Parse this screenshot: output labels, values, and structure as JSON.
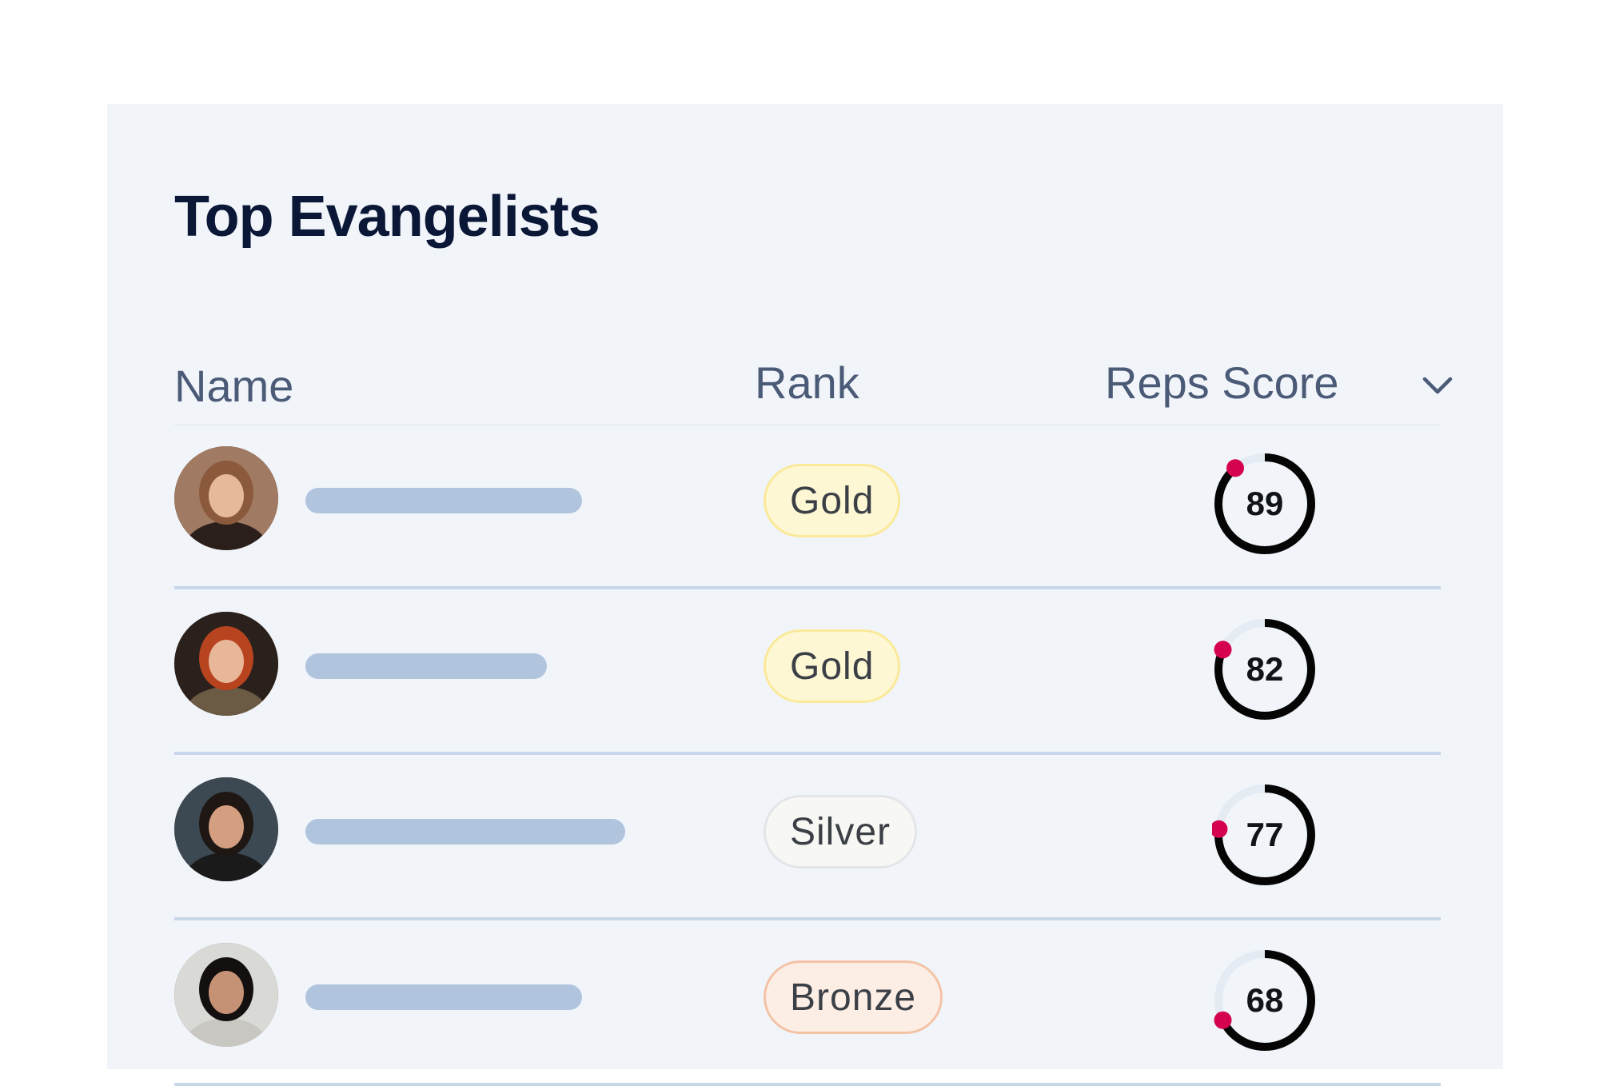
{
  "card": {
    "title": "Top Evangelists",
    "columns": {
      "name": "Name",
      "rank": "Rank",
      "score": "Reps Score"
    },
    "sort_icon": "chevron-down-icon"
  },
  "colors": {
    "gold_bg": "#fdf7d3",
    "gold_border": "#fbe99a",
    "silver_bg": "#f7f7f4",
    "silver_border": "#e3e5e8",
    "bronze_bg": "#fdeee5",
    "bronze_border": "#f4c3a6",
    "ring": "#050505",
    "ring_track": "#e4ebf3",
    "ring_dot": "#d4024f",
    "name_bar": "#b1c4de"
  },
  "rows": [
    {
      "avatar": "avatar-woman-hijab",
      "name_bar_fraction": 0.64,
      "rank": "Gold",
      "rank_tier": "gold",
      "score": "89",
      "score_value": 89
    },
    {
      "avatar": "avatar-woman-red-hair",
      "name_bar_fraction": 0.56,
      "rank": "Gold",
      "rank_tier": "gold",
      "score": "82",
      "score_value": 82
    },
    {
      "avatar": "avatar-man-beard",
      "name_bar_fraction": 0.74,
      "rank": "Silver",
      "rank_tier": "silver",
      "score": "77",
      "score_value": 77
    },
    {
      "avatar": "avatar-woman-dark-hair",
      "name_bar_fraction": 0.64,
      "rank": "Bronze",
      "rank_tier": "bronze",
      "score": "68",
      "score_value": 68
    }
  ]
}
